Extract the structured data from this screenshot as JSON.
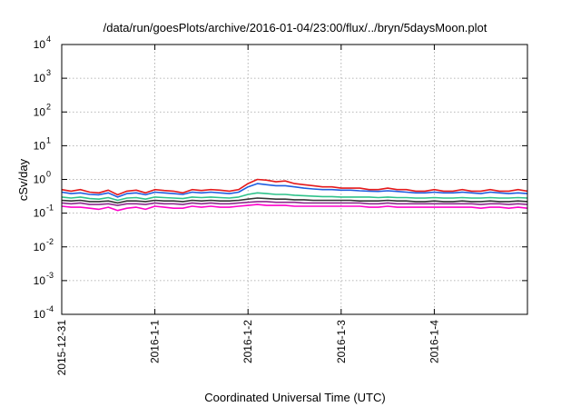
{
  "chart_data": {
    "type": "line",
    "title": "/data/run/goesPlots/archive/2016-01-04/23:00/flux/../bryn/5daysMoon.plot",
    "xlabel": "Coordinated Universal Time (UTC)",
    "ylabel": "cSv/day",
    "x_range": [
      "2015-12-31",
      "2016-01-05"
    ],
    "x_ticks": [
      {
        "x": 0,
        "label": "2015-12-31"
      },
      {
        "x": 1,
        "label": "2016-1-1"
      },
      {
        "x": 2,
        "label": "2016-1-2"
      },
      {
        "x": 3,
        "label": "2016-1-3"
      },
      {
        "x": 4,
        "label": "2016-1-4"
      }
    ],
    "y_scale": "log",
    "ylim": [
      0.0001,
      10000
    ],
    "y_ticks": [
      {
        "exp": -4,
        "base": "10",
        "label": "-4"
      },
      {
        "exp": -3,
        "base": "10",
        "label": "-3"
      },
      {
        "exp": -2,
        "base": "10",
        "label": "-2"
      },
      {
        "exp": -1,
        "base": "10",
        "label": "-1"
      },
      {
        "exp": 0,
        "base": "10",
        "label": "0"
      },
      {
        "exp": 1,
        "base": "10",
        "label": "1"
      },
      {
        "exp": 2,
        "base": "10",
        "label": "2"
      },
      {
        "exp": 3,
        "base": "10",
        "label": "3"
      },
      {
        "exp": 4,
        "base": "10",
        "label": "4"
      }
    ],
    "grid": true,
    "series": [
      {
        "color": "#e41a1c",
        "values": [
          0.5,
          0.45,
          0.5,
          0.42,
          0.4,
          0.48,
          0.35,
          0.45,
          0.48,
          0.4,
          0.5,
          0.47,
          0.45,
          0.4,
          0.5,
          0.47,
          0.5,
          0.48,
          0.45,
          0.5,
          0.75,
          1.0,
          0.95,
          0.85,
          0.9,
          0.75,
          0.7,
          0.65,
          0.6,
          0.6,
          0.55,
          0.55,
          0.55,
          0.5,
          0.5,
          0.55,
          0.5,
          0.5,
          0.45,
          0.45,
          0.5,
          0.45,
          0.45,
          0.5,
          0.45,
          0.45,
          0.5,
          0.45,
          0.45,
          0.5,
          0.45
        ]
      },
      {
        "color": "#1f5fe0",
        "values": [
          0.42,
          0.38,
          0.4,
          0.36,
          0.35,
          0.4,
          0.3,
          0.38,
          0.4,
          0.35,
          0.42,
          0.4,
          0.38,
          0.36,
          0.42,
          0.4,
          0.42,
          0.4,
          0.38,
          0.42,
          0.6,
          0.75,
          0.7,
          0.65,
          0.65,
          0.6,
          0.55,
          0.52,
          0.5,
          0.5,
          0.48,
          0.48,
          0.46,
          0.45,
          0.44,
          0.46,
          0.44,
          0.42,
          0.4,
          0.4,
          0.42,
          0.4,
          0.4,
          0.42,
          0.4,
          0.38,
          0.42,
          0.4,
          0.38,
          0.4,
          0.38
        ]
      },
      {
        "color": "#2ec28a",
        "values": [
          0.3,
          0.28,
          0.3,
          0.27,
          0.26,
          0.29,
          0.24,
          0.28,
          0.29,
          0.26,
          0.3,
          0.29,
          0.28,
          0.27,
          0.3,
          0.29,
          0.3,
          0.29,
          0.28,
          0.3,
          0.36,
          0.4,
          0.38,
          0.36,
          0.36,
          0.34,
          0.33,
          0.32,
          0.31,
          0.31,
          0.3,
          0.3,
          0.3,
          0.3,
          0.29,
          0.3,
          0.29,
          0.29,
          0.28,
          0.28,
          0.29,
          0.28,
          0.28,
          0.29,
          0.28,
          0.28,
          0.29,
          0.28,
          0.28,
          0.29,
          0.28
        ]
      },
      {
        "color": "#333333",
        "values": [
          0.24,
          0.23,
          0.24,
          0.22,
          0.22,
          0.23,
          0.2,
          0.23,
          0.23,
          0.22,
          0.24,
          0.23,
          0.23,
          0.22,
          0.24,
          0.23,
          0.24,
          0.23,
          0.23,
          0.24,
          0.26,
          0.28,
          0.27,
          0.26,
          0.26,
          0.25,
          0.25,
          0.24,
          0.24,
          0.24,
          0.24,
          0.24,
          0.23,
          0.23,
          0.23,
          0.24,
          0.23,
          0.23,
          0.22,
          0.22,
          0.23,
          0.22,
          0.22,
          0.23,
          0.22,
          0.22,
          0.23,
          0.22,
          0.22,
          0.23,
          0.22
        ]
      },
      {
        "color": "#8e2a8e",
        "values": [
          0.2,
          0.19,
          0.2,
          0.18,
          0.18,
          0.19,
          0.17,
          0.19,
          0.19,
          0.18,
          0.2,
          0.19,
          0.19,
          0.18,
          0.2,
          0.19,
          0.2,
          0.19,
          0.19,
          0.2,
          0.21,
          0.22,
          0.22,
          0.21,
          0.21,
          0.21,
          0.2,
          0.2,
          0.2,
          0.2,
          0.2,
          0.2,
          0.2,
          0.19,
          0.19,
          0.2,
          0.19,
          0.19,
          0.19,
          0.19,
          0.19,
          0.19,
          0.19,
          0.19,
          0.19,
          0.18,
          0.19,
          0.19,
          0.18,
          0.19,
          0.18
        ]
      },
      {
        "color": "#ff00cc",
        "values": [
          0.16,
          0.15,
          0.15,
          0.14,
          0.13,
          0.15,
          0.12,
          0.14,
          0.15,
          0.13,
          0.16,
          0.15,
          0.14,
          0.14,
          0.16,
          0.15,
          0.16,
          0.15,
          0.15,
          0.16,
          0.17,
          0.18,
          0.17,
          0.17,
          0.17,
          0.16,
          0.16,
          0.16,
          0.16,
          0.16,
          0.16,
          0.16,
          0.16,
          0.15,
          0.15,
          0.16,
          0.15,
          0.15,
          0.15,
          0.15,
          0.15,
          0.15,
          0.15,
          0.15,
          0.15,
          0.14,
          0.15,
          0.15,
          0.14,
          0.15,
          0.14
        ]
      }
    ]
  }
}
